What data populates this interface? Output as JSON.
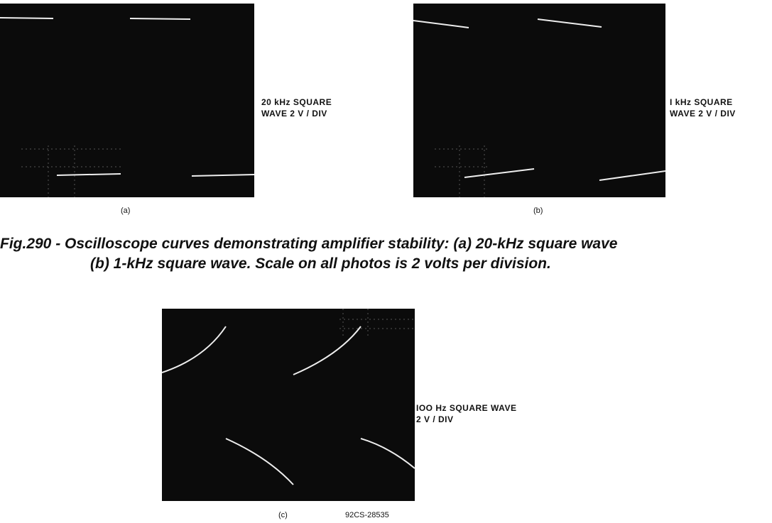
{
  "panels": [
    {
      "label_lines": [
        "20 kHz SQUARE",
        "WAVE 2 V / DIV"
      ],
      "caption": "(a)"
    },
    {
      "label_lines": [
        "I kHz SQUARE",
        "WAVE 2 V / DIV"
      ],
      "caption": "(b)"
    },
    {
      "label_lines": [
        "IOO Hz SQUARE WAVE",
        "2 V / DIV"
      ],
      "caption": "(c)"
    }
  ],
  "figure_caption": [
    "Fig.290 - Oscilloscope curves demonstrating amplifier stability: (a) 20-kHz square wave",
    "(b) 1-kHz square wave. Scale on all photos is 2 volts per division."
  ],
  "figure_code": "92CS-28535"
}
